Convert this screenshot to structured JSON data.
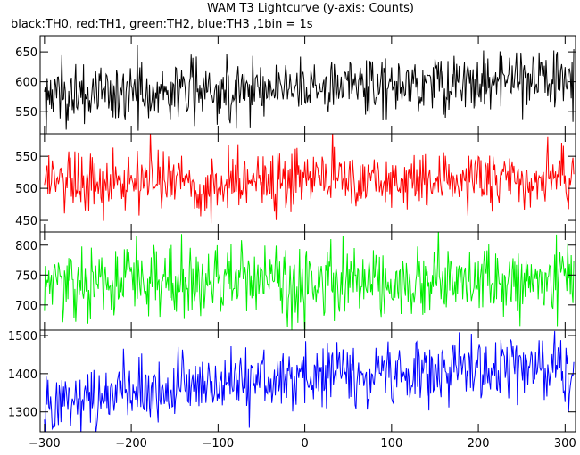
{
  "chart_data": {
    "type": "line",
    "title": "WAM T3 Lightcurve (y-axis: Counts)",
    "subtitle": "black:TH0, red:TH1, green:TH2, blue:TH3 ,1bin = 1s",
    "xlim": [
      -305,
      312
    ],
    "xticks": [
      -300,
      -200,
      -100,
      0,
      100,
      200,
      300
    ],
    "series": [
      {
        "color": "#000000",
        "ylim": [
          513,
          677
        ],
        "yticks": [
          550,
          600,
          650
        ],
        "mean_level": [
          [
            -300,
            575
          ],
          [
            -200,
            582
          ],
          [
            -100,
            588
          ],
          [
            0,
            592
          ],
          [
            100,
            598
          ],
          [
            200,
            600
          ],
          [
            310,
            602
          ]
        ],
        "noise_sigma": 26,
        "data_points": 611
      },
      {
        "color": "#ff0000",
        "ylim": [
          432,
          585
        ],
        "yticks": [
          450,
          500,
          550
        ],
        "mean_level": [
          [
            -300,
            513
          ],
          [
            0,
            513
          ],
          [
            310,
            513
          ]
        ],
        "noise_sigma": 24,
        "data_points": 611
      },
      {
        "color": "#00ee00",
        "ylim": [
          658,
          822
        ],
        "yticks": [
          700,
          750,
          800
        ],
        "mean_level": [
          [
            -300,
            735
          ],
          [
            0,
            740
          ],
          [
            310,
            742
          ]
        ],
        "noise_sigma": 30,
        "data_points": 611
      },
      {
        "color": "#0000ff",
        "ylim": [
          1248,
          1514
        ],
        "yticks": [
          1300,
          1400,
          1500
        ],
        "mean_level": [
          [
            -300,
            1335
          ],
          [
            -200,
            1355
          ],
          [
            -100,
            1375
          ],
          [
            0,
            1392
          ],
          [
            100,
            1410
          ],
          [
            200,
            1413
          ],
          [
            310,
            1410
          ]
        ],
        "noise_sigma": 42,
        "data_points": 611
      }
    ]
  }
}
